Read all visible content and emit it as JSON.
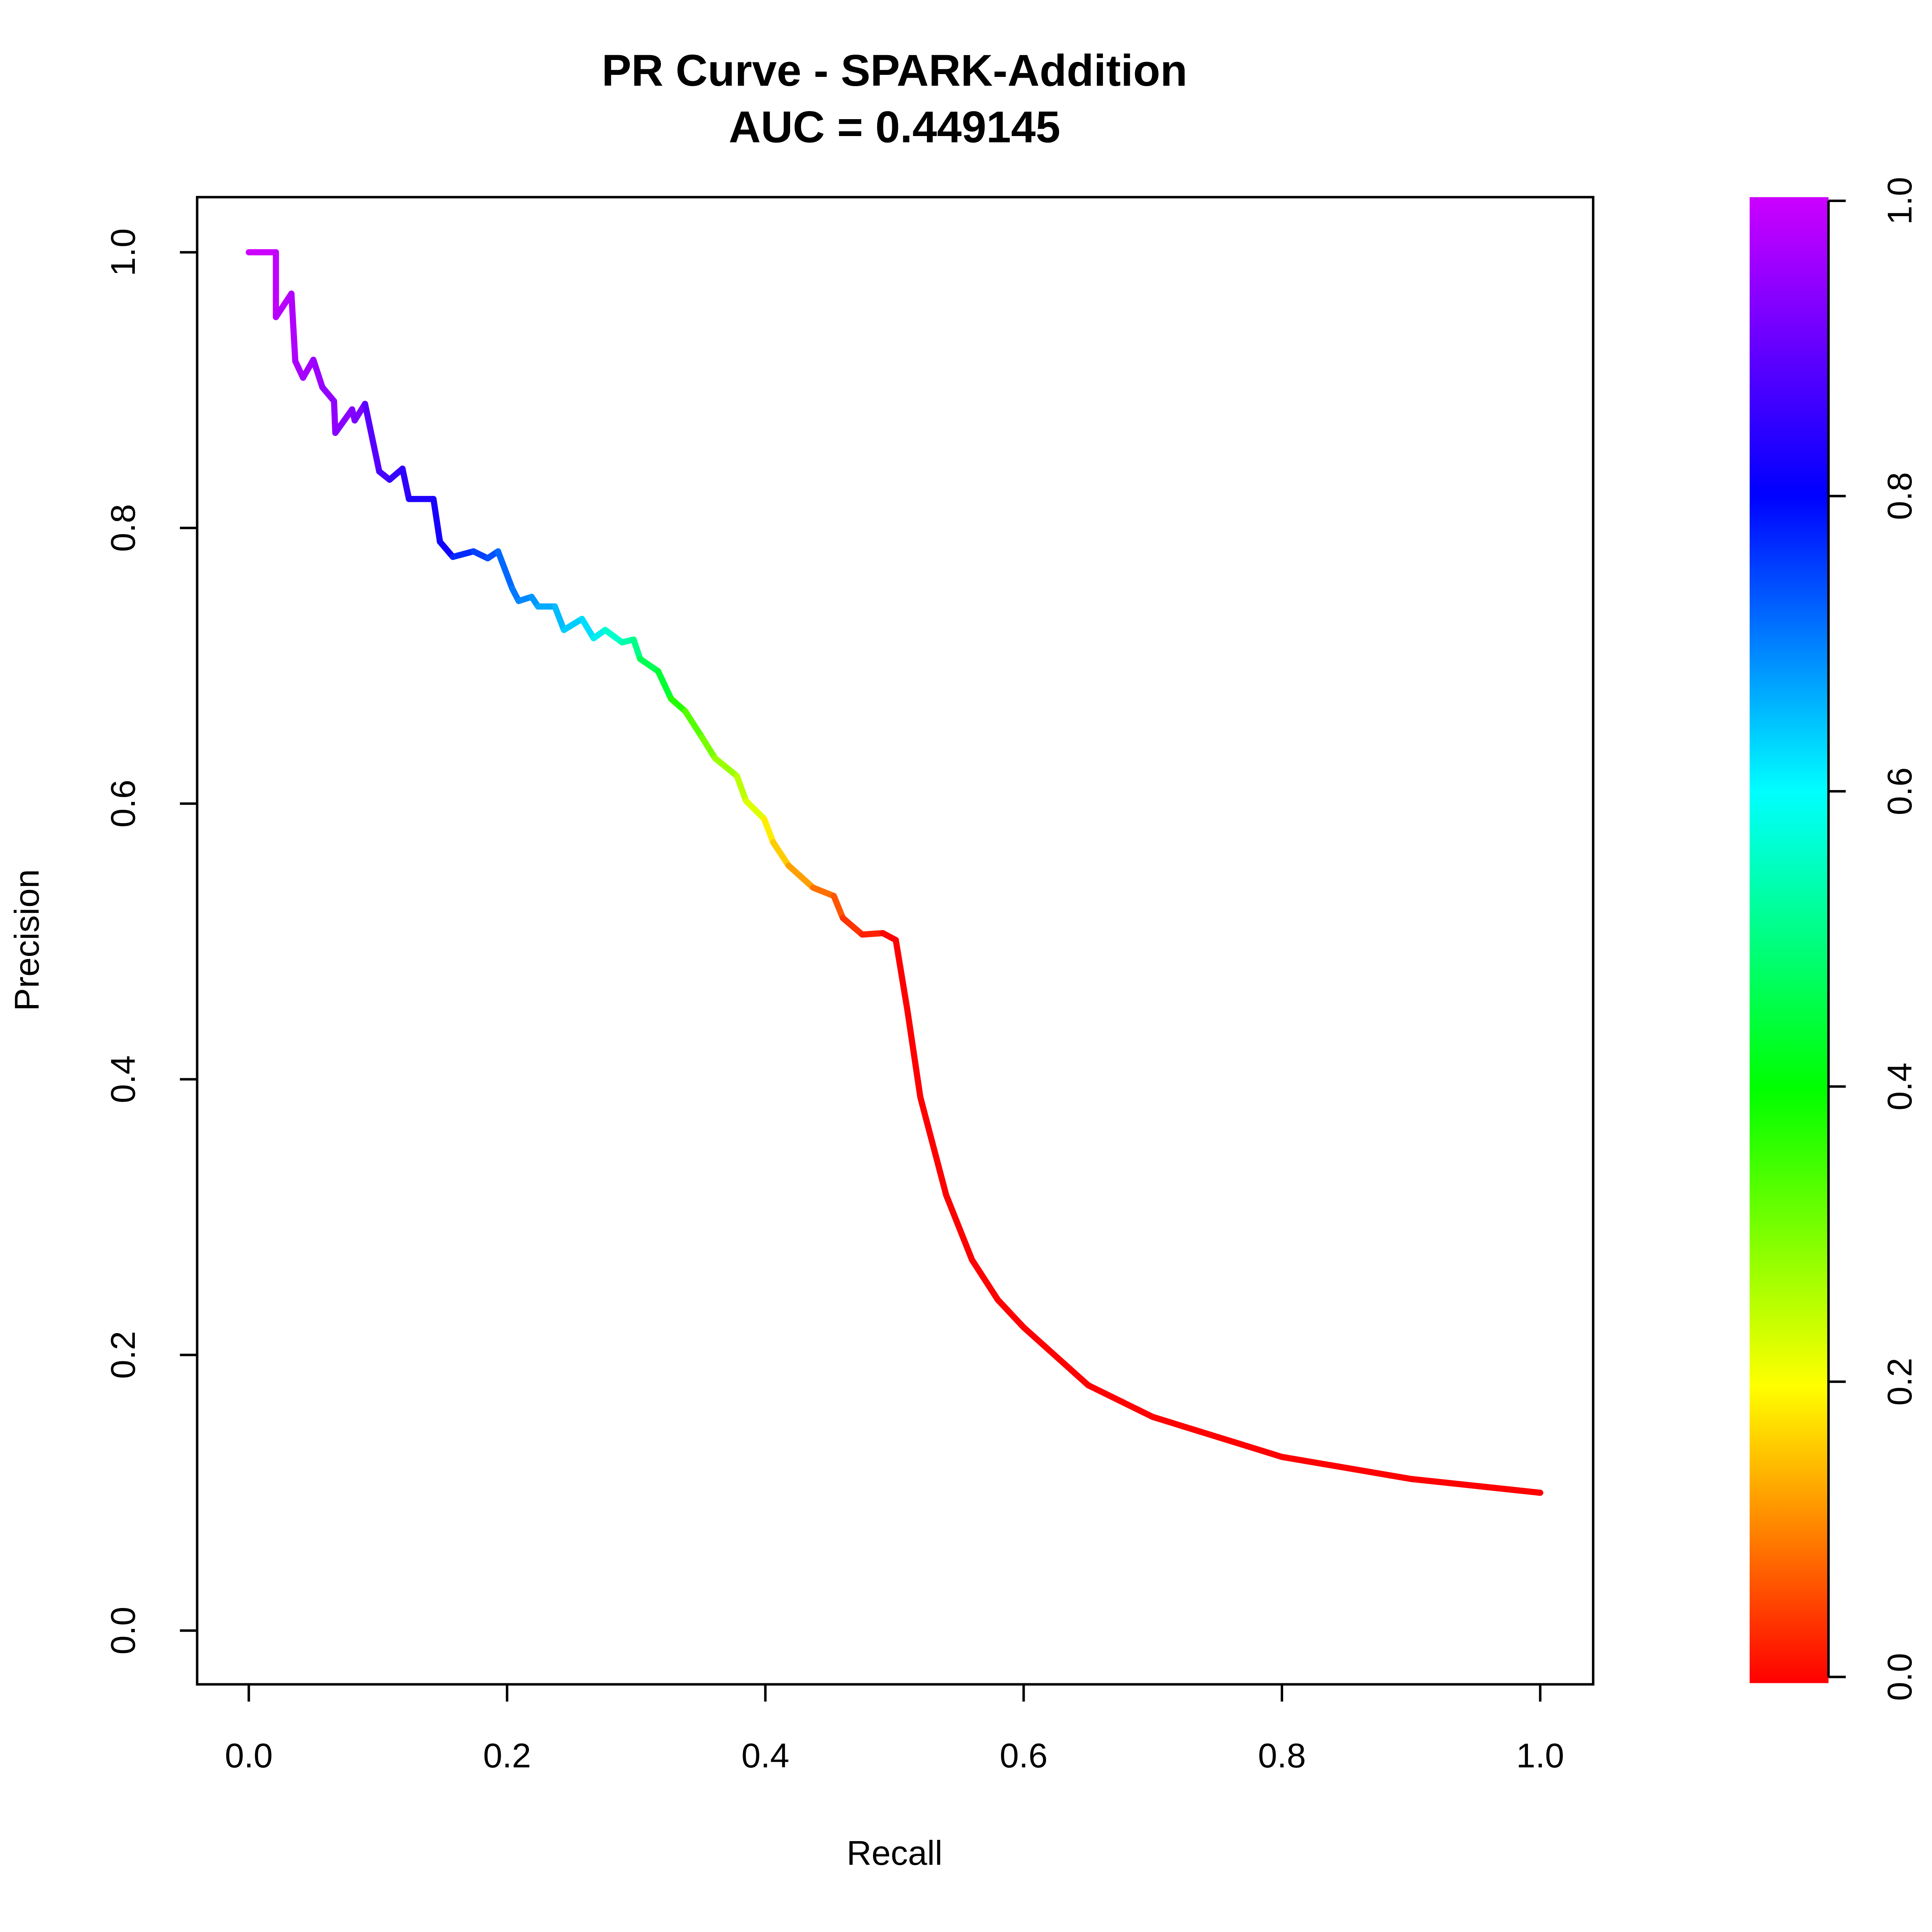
{
  "chart_data": {
    "type": "line",
    "title": "PR Curve - SPARK-Addition",
    "subtitle": "AUC = 0.449145",
    "x_label": "Recall",
    "y_label": "Precision",
    "xlim": [
      -0.04,
      1.041
    ],
    "ylim": [
      -0.039,
      1.04
    ],
    "xticks": [
      {
        "value": 0,
        "label": "0.0"
      },
      0.2,
      0.4,
      0.6,
      0.8,
      {
        "value": 1,
        "label": "1.0"
      }
    ],
    "yticks": [
      {
        "value": 0,
        "label": "0.0"
      },
      0.2,
      0.4,
      0.6,
      0.8,
      {
        "value": 1,
        "label": "1.0"
      }
    ],
    "grid": false,
    "x": [
      0,
      0.021,
      0.021,
      0.033,
      0.036,
      0.042,
      0.05,
      0.057,
      0.066,
      0.067,
      0.08,
      0.082,
      0.09,
      0.101,
      0.109,
      0.119,
      0.124,
      0.143,
      0.148,
      0.158,
      0.174,
      0.185,
      0.193,
      0.204,
      0.209,
      0.219,
      0.224,
      0.237,
      0.244,
      0.258,
      0.267,
      0.276,
      0.289,
      0.298,
      0.303,
      0.317,
      0.327,
      0.338,
      0.351,
      0.361,
      0.378,
      0.385,
      0.399,
      0.406,
      0.418,
      0.437,
      0.453,
      0.46,
      0.475,
      0.491,
      0.501,
      0.51,
      0.52,
      0.54,
      0.56,
      0.58,
      0.6,
      0.65,
      0.7,
      0.8,
      0.9,
      1.0
    ],
    "series": [
      {
        "name": "Precision",
        "values": [
          1.0,
          1.0,
          0.953,
          0.97,
          0.921,
          0.909,
          0.922,
          0.902,
          0.892,
          0.869,
          0.886,
          0.878,
          0.89,
          0.841,
          0.835,
          0.843,
          0.821,
          0.821,
          0.79,
          0.779,
          0.783,
          0.778,
          0.783,
          0.756,
          0.747,
          0.75,
          0.743,
          0.743,
          0.726,
          0.734,
          0.72,
          0.726,
          0.717,
          0.719,
          0.705,
          0.696,
          0.676,
          0.667,
          0.648,
          0.633,
          0.62,
          0.602,
          0.589,
          0.572,
          0.555,
          0.539,
          0.533,
          0.517,
          0.505,
          0.506,
          0.501,
          0.45,
          0.387,
          0.316,
          0.269,
          0.24,
          0.22,
          0.178,
          0.155,
          0.126,
          0.11,
          0.1
        ],
        "colors": [
          "#cc00ff",
          "#cc00ff",
          "#c000ff",
          "#b800ff",
          "#b000ff",
          "#aa00ff",
          "#a400ff",
          "#9c00ff",
          "#9400ff",
          "#9000ff",
          "#8800ff",
          "#8400ff",
          "#7c00ff",
          "#5800ff",
          "#4800ff",
          "#3800ff",
          "#3000ff",
          "#2000ff",
          "#1800ff",
          "#1000ff",
          "#0028ff",
          "#0040ff",
          "#0050ff",
          "#0068ff",
          "#0078ff",
          "#0088ff",
          "#0098ff",
          "#00aaff",
          "#00bbff",
          "#00ccff",
          "#00ddff",
          "#00eeee",
          "#00ffcc",
          "#00ffaa",
          "#00ff88",
          "#00ff55",
          "#00ff33",
          "#22ff00",
          "#55ff00",
          "#77ff00",
          "#99ff00",
          "#bbff00",
          "#ddff00",
          "#ffee00",
          "#ffcc00",
          "#ffa000",
          "#ff7000",
          "#ff5500",
          "#ff3300",
          "#ff2200",
          "#ff0000",
          "#ff0000",
          "#ff0000",
          "#ff0000",
          "#ff0000",
          "#ff0000",
          "#ff0000",
          "#ff0000",
          "#ff0000",
          "#ff0000",
          "#ff0000",
          "#ff0000"
        ]
      }
    ],
    "colorbar": {
      "ylim": [
        0,
        1
      ],
      "ticks": [
        {
          "value": 0,
          "label": "0.0"
        },
        0.2,
        0.4,
        0.6,
        0.8,
        {
          "value": 1,
          "label": "1.0"
        }
      ],
      "colors": [
        "#ff0000",
        "#ffff00",
        "#00ff00",
        "#00ffff",
        "#0000ff",
        "#cc00ff"
      ]
    }
  }
}
